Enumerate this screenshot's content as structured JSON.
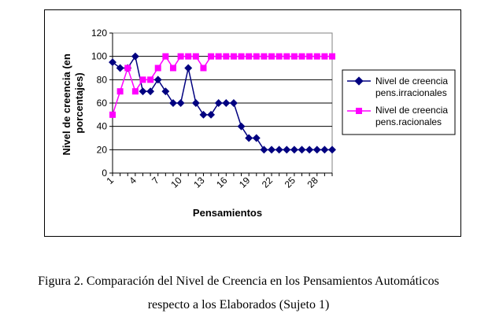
{
  "chart_data": {
    "type": "line",
    "title": "",
    "xlabel": "Pensamientos",
    "ylabel": "Nivel de creencia (en porcentajes)",
    "ylim": [
      0,
      120
    ],
    "yticks": [
      0,
      20,
      40,
      60,
      80,
      100,
      120
    ],
    "x": [
      1,
      2,
      3,
      4,
      5,
      6,
      7,
      8,
      9,
      10,
      11,
      12,
      13,
      14,
      15,
      16,
      17,
      18,
      19,
      20,
      21,
      22,
      23,
      24,
      25,
      26,
      27,
      28,
      29,
      30
    ],
    "xtick_labels": [
      "1",
      "4",
      "7",
      "10",
      "13",
      "16",
      "19",
      "22",
      "25",
      "28"
    ],
    "grid": "horizontal",
    "legend_position": "right",
    "series": [
      {
        "name": "Nivel de creencia pens.irracionales",
        "color": "#000080",
        "marker": "diamond",
        "values": [
          95,
          90,
          90,
          100,
          70,
          70,
          80,
          70,
          60,
          60,
          90,
          60,
          50,
          50,
          60,
          60,
          60,
          40,
          30,
          30,
          20,
          20,
          20,
          20,
          20,
          20,
          20,
          20,
          20,
          20
        ]
      },
      {
        "name": "Nivel de creencia pens.racionales",
        "color": "#ff00ff",
        "marker": "square",
        "values": [
          50,
          70,
          90,
          70,
          80,
          80,
          90,
          100,
          90,
          100,
          100,
          100,
          90,
          100,
          100,
          100,
          100,
          100,
          100,
          100,
          100,
          100,
          100,
          100,
          100,
          100,
          100,
          100,
          100,
          100
        ]
      }
    ]
  },
  "legend": {
    "irr_line1": "Nivel de creencia",
    "irr_line2": "pens.irracionales",
    "rac_line1": "Nivel de creencia",
    "rac_line2": "pens.racionales"
  },
  "ylabel_line1": "Nivel de creencia (en",
  "ylabel_line2": "porcentajes)",
  "caption": {
    "line1": "Figura 2. Comparación del Nivel de Creencia en los Pensamientos Automáticos",
    "line2": "respecto a los Elaborados (Sujeto 1)"
  }
}
